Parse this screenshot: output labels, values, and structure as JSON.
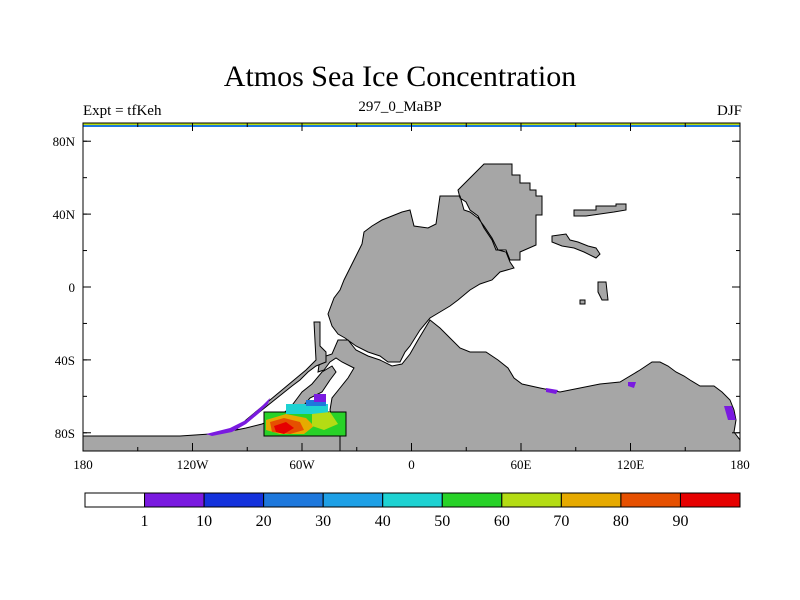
{
  "title": "Atmos Sea Ice Concentration",
  "left_string": "Expt = tfKeh",
  "center_string": "297_0_MaBP",
  "right_string": "DJF",
  "map": {
    "lon_range": [
      -180,
      180
    ],
    "lat_range": [
      -90,
      90
    ],
    "land_color": "#a6a6a6",
    "x_ticks": [
      "180",
      "120W",
      "60W",
      "0",
      "60E",
      "120E",
      "180"
    ],
    "y_ticks": [
      "80N",
      "40N",
      "0",
      "40S",
      "80S"
    ]
  },
  "colorbar": {
    "levels": [
      "1",
      "10",
      "20",
      "30",
      "40",
      "50",
      "60",
      "70",
      "80",
      "90"
    ],
    "colors": [
      "#ffffff",
      "#7a1ae0",
      "#1432dc",
      "#1e78dc",
      "#1ea0e6",
      "#1ed2d2",
      "#28d228",
      "#b4dc14",
      "#e6aa00",
      "#e65000",
      "#e60000"
    ]
  }
}
